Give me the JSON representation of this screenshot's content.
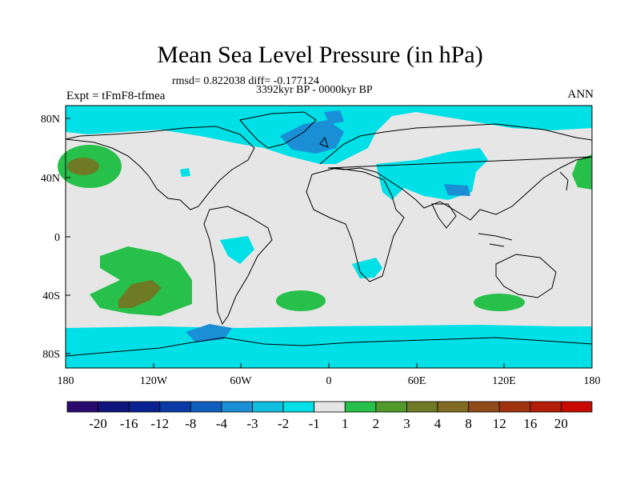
{
  "title": "Mean Sea Level Pressure (in hPa)",
  "stats": "rmsd= 0.822038 diff= -0.177124",
  "period": "3392kyr BP - 0000kyr BP",
  "experiment": "Expt = tFmF8-tfmea",
  "season": "ANN",
  "map": {
    "lat_ticks": [
      "80N",
      "40N",
      "0",
      "40S",
      "80S"
    ],
    "lon_ticks": [
      "180",
      "120W",
      "60W",
      "0",
      "60E",
      "120E",
      "180"
    ]
  },
  "colorbar": {
    "colors": [
      "#2a0a6e",
      "#10157e",
      "#08228f",
      "#0a3aa3",
      "#105fbf",
      "#1a8fd6",
      "#10bfe0",
      "#00e0e6",
      "#e6e6e6",
      "#26c04a",
      "#4f9a2a",
      "#6e7a24",
      "#826a22",
      "#8f4a1a",
      "#a03210",
      "#b41e08",
      "#c80a00"
    ],
    "labels": [
      "-20",
      "-16",
      "-12",
      "-8",
      "-4",
      "-3",
      "-2",
      "-1",
      "1",
      "2",
      "3",
      "4",
      "8",
      "12",
      "16",
      "20"
    ]
  },
  "palette": {
    "neutral": "#e6e6e6",
    "cyan": "#00e0e6",
    "blue": "#1a8fd6",
    "green": "#26c04a",
    "olive": "#6e7a24"
  }
}
